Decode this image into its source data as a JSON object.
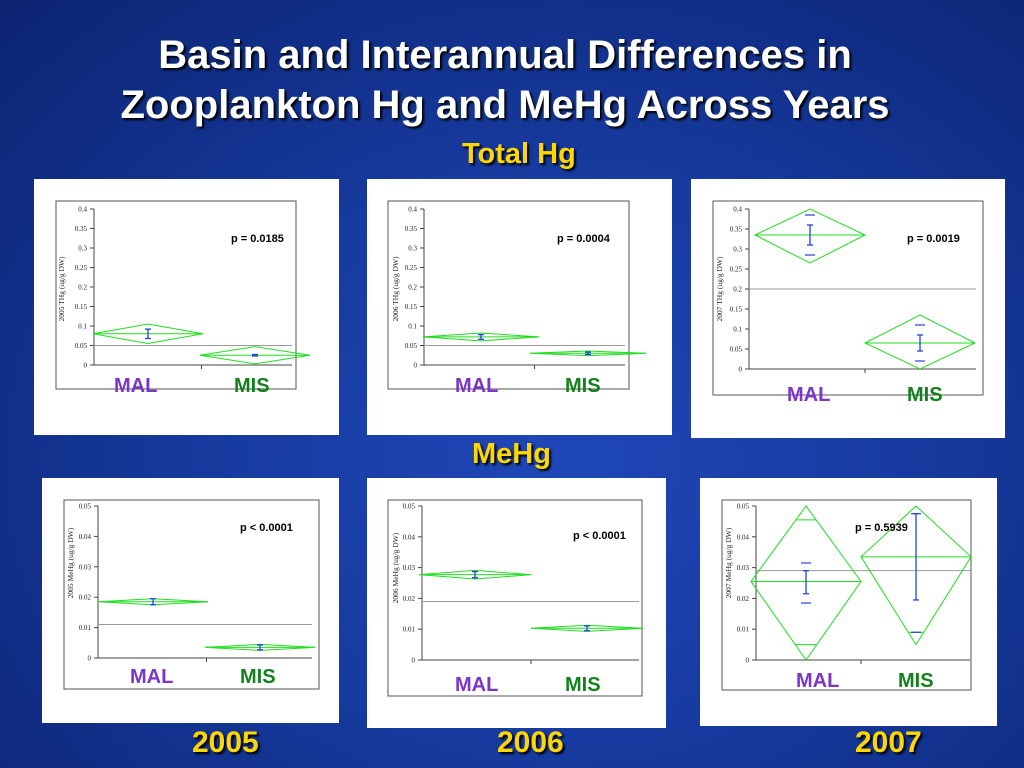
{
  "title_line1": "Basin and Interannual Differences in",
  "title_line2": "Zooplankton Hg and MeHg Across Years",
  "section_total": "Total Hg",
  "section_mehg": "MeHg",
  "years": [
    "2005",
    "2006",
    "2007"
  ],
  "colors": {
    "background": "#163a9e",
    "title": "#ffffff",
    "accent": "#ffd700",
    "mal": "#7b35c9",
    "mis": "#15801e",
    "diamond": "#22dd22",
    "errorbar": "#2244dd"
  },
  "chart_data": [
    {
      "type": "scatter",
      "id": "total-2005",
      "ylabel": "2005 THg (ug/g DW)",
      "ylim": [
        0,
        0.4
      ],
      "yticks": [
        "0",
        "0.05",
        "0.1",
        "0.15",
        "0.2",
        "0.25",
        "0.3",
        "0.35",
        "0.4"
      ],
      "categories": [
        "MAL",
        "MIS"
      ],
      "p_value": "p = 0.0185",
      "grand_mean": 0.05,
      "groups": [
        {
          "name": "MAL",
          "mean": 0.08,
          "ci_low": 0.055,
          "ci_high": 0.105,
          "err_low": 0.068,
          "err_high": 0.092
        },
        {
          "name": "MIS",
          "mean": 0.025,
          "ci_low": 0.003,
          "ci_high": 0.047,
          "err_low": 0.023,
          "err_high": 0.027
        }
      ]
    },
    {
      "type": "scatter",
      "id": "total-2006",
      "ylabel": "2006 THg (ug/g DW)",
      "ylim": [
        0,
        0.4
      ],
      "yticks": [
        "0",
        "0.05",
        "0.1",
        "0.15",
        "0.2",
        "0.25",
        "0.3",
        "0.35",
        "0.4"
      ],
      "categories": [
        "MAL",
        "MIS"
      ],
      "p_value": "p = 0.0004",
      "grand_mean": 0.05,
      "groups": [
        {
          "name": "MAL",
          "mean": 0.072,
          "ci_low": 0.062,
          "ci_high": 0.082,
          "err_low": 0.066,
          "err_high": 0.078
        },
        {
          "name": "MIS",
          "mean": 0.03,
          "ci_low": 0.024,
          "ci_high": 0.036,
          "err_low": 0.027,
          "err_high": 0.033
        }
      ]
    },
    {
      "type": "scatter",
      "id": "total-2007",
      "ylabel": "2007 THg (ug/g DW)",
      "ylim": [
        0,
        0.4
      ],
      "yticks": [
        "0",
        "0.05",
        "0.1",
        "0.15",
        "0.2",
        "0.25",
        "0.3",
        "0.35",
        "0.4"
      ],
      "categories": [
        "MAL",
        "MIS"
      ],
      "p_value": "p = 0.0019",
      "grand_mean": 0.2,
      "groups": [
        {
          "name": "MAL",
          "mean": 0.335,
          "ci_low": 0.265,
          "ci_high": 0.4,
          "err_low": 0.31,
          "err_high": 0.36,
          "outer_low": 0.285,
          "outer_high": 0.385
        },
        {
          "name": "MIS",
          "mean": 0.065,
          "ci_low": 0.0,
          "ci_high": 0.135,
          "err_low": 0.045,
          "err_high": 0.085,
          "outer_low": 0.02,
          "outer_high": 0.11
        }
      ]
    },
    {
      "type": "scatter",
      "id": "mehg-2005",
      "ylabel": "2005 MeHg (ug/g DW)",
      "ylim": [
        0,
        0.05
      ],
      "yticks": [
        "0",
        "0.01",
        "0.02",
        "0.03",
        "0.04",
        "0.05"
      ],
      "categories": [
        "MAL",
        "MIS"
      ],
      "p_value": "p < 0.0001",
      "grand_mean": 0.011,
      "groups": [
        {
          "name": "MAL",
          "mean": 0.0185,
          "ci_low": 0.0175,
          "ci_high": 0.0195,
          "err_low": 0.0175,
          "err_high": 0.0195
        },
        {
          "name": "MIS",
          "mean": 0.0035,
          "ci_low": 0.0025,
          "ci_high": 0.0045,
          "err_low": 0.0027,
          "err_high": 0.0043
        }
      ]
    },
    {
      "type": "scatter",
      "id": "mehg-2006",
      "ylabel": "2006 MeHg (ug/g DW)",
      "ylim": [
        0,
        0.05
      ],
      "yticks": [
        "0",
        "0.01",
        "0.02",
        "0.03",
        "0.04",
        "0.05"
      ],
      "categories": [
        "MAL",
        "MIS"
      ],
      "p_value": "p < 0.0001",
      "grand_mean": 0.019,
      "groups": [
        {
          "name": "MAL",
          "mean": 0.0277,
          "ci_low": 0.0263,
          "ci_high": 0.0291,
          "err_low": 0.0267,
          "err_high": 0.0287
        },
        {
          "name": "MIS",
          "mean": 0.0103,
          "ci_low": 0.0093,
          "ci_high": 0.0113,
          "err_low": 0.0095,
          "err_high": 0.0111
        }
      ]
    },
    {
      "type": "scatter",
      "id": "mehg-2007",
      "ylabel": "2007 MeHg (ug/g DW)",
      "ylim": [
        0,
        0.05
      ],
      "yticks": [
        "0",
        "0.01",
        "0.02",
        "0.03",
        "0.04",
        "0.05"
      ],
      "categories": [
        "MAL",
        "MIS"
      ],
      "p_value": "p = 0.5939",
      "grand_mean": 0.029,
      "groups": [
        {
          "name": "MAL",
          "mean": 0.0255,
          "ci_low": 0.0,
          "ci_high": 0.05,
          "err_low": 0.0215,
          "err_high": 0.029,
          "outer_low": 0.0185,
          "outer_high": 0.0315,
          "overlap_low": 0.005,
          "overlap_high": 0.0455
        },
        {
          "name": "MIS",
          "mean": 0.0335,
          "ci_low": 0.005,
          "ci_high": 0.05,
          "err_low": 0.0195,
          "err_high": 0.0475,
          "outer_low": 0.009,
          "outer_high": 0.0475,
          "overlap_low": 0.009,
          "overlap_high": 0.05
        }
      ]
    }
  ]
}
